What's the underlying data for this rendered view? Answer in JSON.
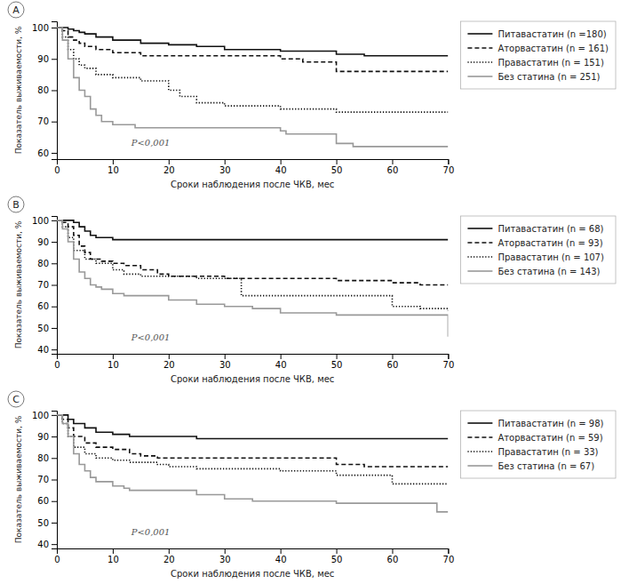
{
  "chart_data": [
    {
      "type": "step",
      "title": "A",
      "xlabel": "Сроки наблюдения после ЧКВ, мес",
      "ylabel": "Показатель выживаемости, %",
      "annotations": [
        "P<0,001"
      ],
      "xlim": [
        0,
        70
      ],
      "xticks": [
        0,
        10,
        20,
        30,
        40,
        50,
        60,
        70
      ],
      "ylim": [
        58,
        102
      ],
      "yticks": [
        60,
        70,
        80,
        90,
        100
      ],
      "grid": false,
      "legend": "right",
      "series": [
        {
          "name": "Питавастатин (n =180)",
          "color": "#111111",
          "line_style": "solid",
          "x": [
            0,
            1,
            2,
            3,
            4,
            5,
            7,
            10,
            15,
            20,
            25,
            30,
            40,
            50,
            55,
            60,
            70
          ],
          "values": [
            100,
            100,
            99.5,
            99,
            98.5,
            98,
            97,
            96,
            95,
            94.5,
            94,
            93,
            92.5,
            91.5,
            91,
            91,
            91
          ]
        },
        {
          "name": "Аторвастатин (n = 161)",
          "color": "#111111",
          "line_style": "dashed",
          "x": [
            0,
            1,
            2,
            3,
            4,
            5,
            7,
            10,
            15,
            20,
            25,
            30,
            40,
            44,
            50,
            55,
            60,
            70
          ],
          "values": [
            100,
            99,
            97,
            96,
            95,
            94,
            93,
            92,
            91,
            91,
            91,
            91,
            90,
            89,
            86,
            86,
            86,
            86
          ]
        },
        {
          "name": "Правастатин (n = 151)",
          "color": "#111111",
          "line_style": "dotted",
          "x": [
            0,
            1,
            2,
            3,
            4,
            5,
            7,
            10,
            15,
            20,
            22,
            25,
            30,
            35,
            40,
            50,
            60,
            70
          ],
          "values": [
            100,
            97,
            93,
            90,
            88,
            87,
            85,
            84,
            83,
            80,
            78,
            76,
            75,
            75,
            74,
            73,
            73,
            73
          ]
        },
        {
          "name": "Без статина (n = 251)",
          "color": "#999999",
          "line_style": "solid",
          "x": [
            0,
            1,
            2,
            3,
            4,
            5,
            6,
            7,
            8,
            10,
            12,
            14,
            20,
            25,
            30,
            40,
            41,
            50,
            53,
            55,
            60,
            70
          ],
          "values": [
            100,
            96,
            90,
            84,
            80,
            78,
            74,
            72,
            70,
            69,
            69,
            68,
            68,
            68,
            68,
            67,
            66,
            63,
            62,
            62,
            62,
            62
          ]
        }
      ]
    },
    {
      "type": "step",
      "title": "B",
      "xlabel": "Сроки наблюдения после ЧКВ, мес",
      "ylabel": "Показатель выживаемости, %",
      "annotations": [
        "P<0,001"
      ],
      "xlim": [
        0,
        70
      ],
      "xticks": [
        0,
        10,
        20,
        30,
        40,
        50,
        60,
        70
      ],
      "ylim": [
        38,
        102
      ],
      "yticks": [
        40,
        50,
        60,
        70,
        80,
        90,
        100
      ],
      "grid": false,
      "legend": "right",
      "series": [
        {
          "name": "Питавастатин (n = 68)",
          "color": "#111111",
          "line_style": "solid",
          "x": [
            0,
            1,
            2,
            3,
            4,
            5,
            6,
            7,
            10,
            15,
            18,
            20,
            25,
            30,
            40,
            50,
            60,
            65,
            70
          ],
          "values": [
            100,
            100,
            100,
            99,
            97,
            95,
            93,
            92,
            91,
            91,
            91,
            91,
            91,
            91,
            91,
            91,
            91,
            91,
            91
          ]
        },
        {
          "name": "Аторвастатин (n = 93)",
          "color": "#111111",
          "line_style": "dashed",
          "x": [
            0,
            1,
            2,
            3,
            4,
            5,
            6,
            8,
            10,
            12,
            15,
            18,
            20,
            25,
            30,
            35,
            40,
            45,
            50,
            55,
            60,
            65,
            70
          ],
          "values": [
            100,
            99,
            97,
            93,
            88,
            85,
            82,
            81,
            80,
            79,
            77,
            75,
            74,
            74,
            73,
            73,
            73,
            73,
            72,
            72,
            71,
            70,
            70
          ]
        },
        {
          "name": "Правастатин (n = 107)",
          "color": "#111111",
          "line_style": "dotted",
          "x": [
            0,
            1,
            2,
            3,
            5,
            7,
            10,
            12,
            15,
            18,
            20,
            25,
            30,
            33,
            35,
            40,
            50,
            55,
            60,
            65,
            70
          ],
          "values": [
            100,
            97,
            92,
            86,
            82,
            80,
            77,
            75,
            74,
            74,
            74,
            73,
            73,
            65,
            65,
            65,
            65,
            65,
            60,
            59,
            58
          ]
        },
        {
          "name": "Без статина (n = 143)",
          "color": "#999999",
          "line_style": "solid",
          "x": [
            0,
            1,
            2,
            3,
            4,
            5,
            6,
            7,
            8,
            10,
            12,
            15,
            18,
            20,
            25,
            30,
            35,
            40,
            45,
            50,
            55,
            60,
            65,
            70
          ],
          "values": [
            100,
            96,
            90,
            82,
            76,
            73,
            70,
            69,
            68,
            66,
            65,
            65,
            65,
            63,
            61,
            60,
            59,
            57,
            57,
            56,
            56,
            56,
            56,
            46
          ]
        }
      ]
    },
    {
      "type": "step",
      "title": "C",
      "xlabel": "Сроки наблюдения после ЧКВ, мес",
      "ylabel": "Показатель выживаемости, %",
      "annotations": [
        "P<0,001"
      ],
      "xlim": [
        0,
        70
      ],
      "xticks": [
        0,
        10,
        20,
        30,
        40,
        50,
        60,
        70
      ],
      "ylim": [
        38,
        102
      ],
      "yticks": [
        40,
        50,
        60,
        70,
        80,
        90,
        100
      ],
      "grid": false,
      "legend": "right",
      "series": [
        {
          "name": "Питавастатин (n = 98)",
          "color": "#111111",
          "line_style": "solid",
          "x": [
            0,
            1,
            2,
            3,
            5,
            7,
            10,
            13,
            18,
            20,
            25,
            30,
            40,
            50,
            60,
            70
          ],
          "values": [
            100,
            100,
            98,
            96,
            94,
            92,
            91,
            90,
            90,
            90,
            89,
            89,
            89,
            89,
            89,
            89
          ]
        },
        {
          "name": "Аторвастатин (n = 59)",
          "color": "#111111",
          "line_style": "dashed",
          "x": [
            0,
            1,
            2,
            3,
            5,
            7,
            10,
            13,
            15,
            18,
            20,
            25,
            30,
            40,
            50,
            55,
            60,
            65,
            70
          ],
          "values": [
            100,
            98,
            94,
            90,
            87,
            85,
            84,
            82,
            81,
            80,
            80,
            80,
            80,
            80,
            77,
            76,
            76,
            76,
            76
          ]
        },
        {
          "name": "Правастатин (n = 33)",
          "color": "#111111",
          "line_style": "dotted",
          "x": [
            0,
            1,
            2,
            3,
            5,
            7,
            10,
            13,
            15,
            18,
            20,
            25,
            30,
            40,
            50,
            60,
            65,
            68,
            70
          ],
          "values": [
            100,
            96,
            90,
            85,
            82,
            80,
            79,
            78,
            78,
            77,
            76,
            75,
            75,
            74,
            72,
            68,
            68,
            68,
            68
          ]
        },
        {
          "name": "Без статина (n = 67)",
          "color": "#999999",
          "line_style": "solid",
          "x": [
            0,
            1,
            2,
            3,
            4,
            5,
            6,
            7,
            10,
            12,
            13,
            15,
            18,
            20,
            25,
            30,
            35,
            40,
            50,
            60,
            65,
            68,
            70
          ],
          "values": [
            100,
            96,
            90,
            82,
            77,
            74,
            71,
            69,
            67,
            66,
            65,
            65,
            65,
            65,
            63,
            61,
            60,
            60,
            59,
            59,
            59,
            55,
            55
          ]
        }
      ]
    }
  ]
}
